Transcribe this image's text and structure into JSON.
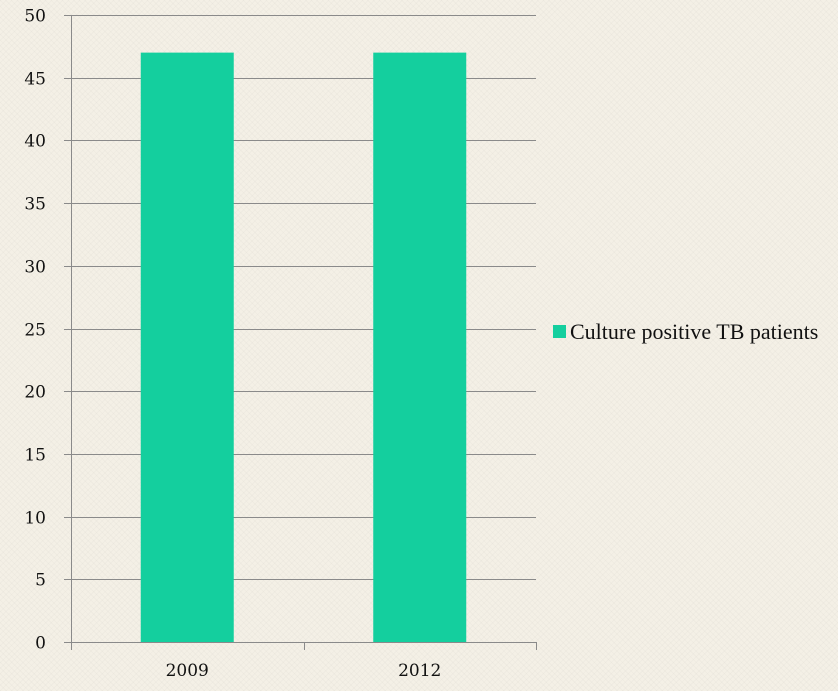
{
  "chart_data": {
    "type": "bar",
    "categories": [
      "2009",
      "2012"
    ],
    "series": [
      {
        "name": "Culture positive TB patients",
        "values": [
          47,
          47
        ],
        "color": "#14cf9e"
      }
    ],
    "ylim": [
      0,
      50
    ],
    "yticks": [
      0,
      5,
      10,
      15,
      20,
      25,
      30,
      35,
      40,
      45,
      50
    ],
    "grid": true,
    "legend": "right"
  }
}
